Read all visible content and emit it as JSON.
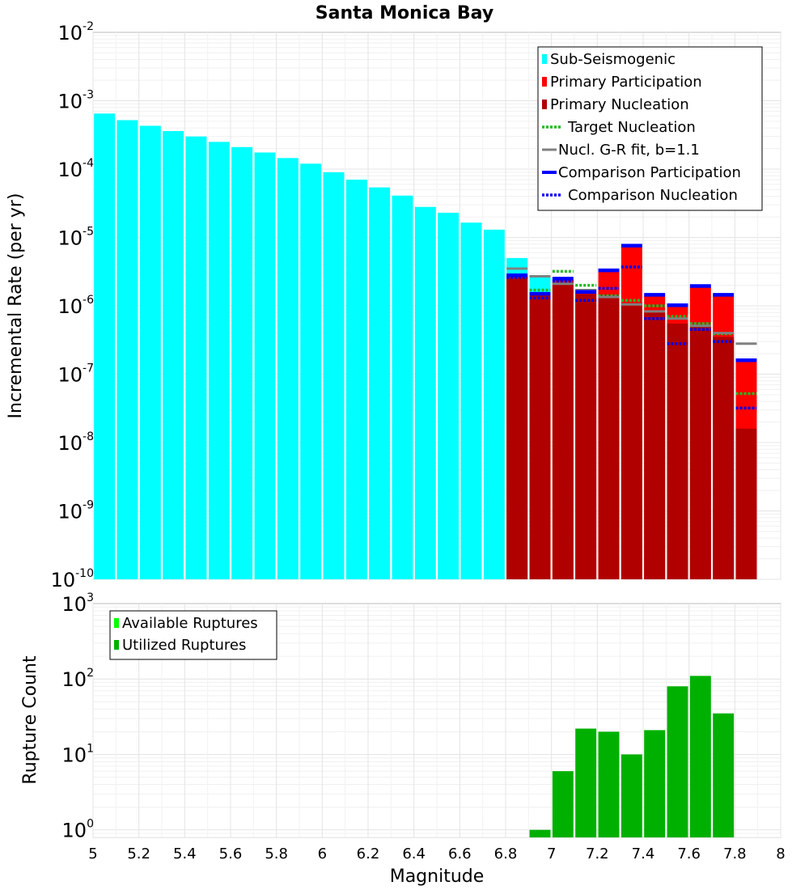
{
  "chart_data": {
    "type": "bar",
    "title": "Santa Monica Bay",
    "xlabel": "Magnitude",
    "x_ticks": [
      "5",
      "5.2",
      "5.4",
      "5.6",
      "5.8",
      "6",
      "6.2",
      "6.4",
      "6.6",
      "6.8",
      "7",
      "7.2",
      "7.4",
      "7.6",
      "7.8",
      "8"
    ],
    "xlim": [
      5,
      8
    ],
    "bin_width": 0.1,
    "panels": [
      {
        "id": "rate",
        "ylabel": "Incremental Rate (per yr)",
        "yscale": "log",
        "ylim_exp": [
          -10,
          -2
        ],
        "y_ticks": [
          {
            "base": "10",
            "exp": "-2"
          },
          {
            "base": "10",
            "exp": "-3"
          },
          {
            "base": "10",
            "exp": "-4"
          },
          {
            "base": "10",
            "exp": "-5"
          },
          {
            "base": "10",
            "exp": "-6"
          },
          {
            "base": "10",
            "exp": "-7"
          },
          {
            "base": "10",
            "exp": "-8"
          },
          {
            "base": "10",
            "exp": "-9"
          },
          {
            "base": "10",
            "exp": "-10"
          }
        ],
        "legend": [
          {
            "label": "Sub-Seismogenic",
            "style": "bar",
            "color": "#00ffff"
          },
          {
            "label": "Primary Participation",
            "style": "bar",
            "color": "#ff0000"
          },
          {
            "label": "Primary Nucleation",
            "style": "bar",
            "color": "#b00000"
          },
          {
            "label": "Target Nucleation",
            "style": "dotted",
            "color": "#22bb22"
          },
          {
            "label": "Nucl. G-R fit, b=1.1",
            "style": "line",
            "color": "#808080"
          },
          {
            "label": "Comparison Participation",
            "style": "line",
            "color": "#0000ff"
          },
          {
            "label": "Comparison Nucleation",
            "style": "dotted",
            "color": "#0000ee"
          }
        ],
        "series": [
          {
            "name": "Sub-Seismogenic",
            "color": "#00ffff",
            "x": [
              5.05,
              5.15,
              5.25,
              5.35,
              5.45,
              5.55,
              5.65,
              5.75,
              5.85,
              5.95,
              6.05,
              6.15,
              6.25,
              6.35,
              6.45,
              6.55,
              6.65,
              6.75,
              6.85,
              6.95
            ],
            "values": [
              0.00065,
              0.00052,
              0.00043,
              0.00036,
              0.0003,
              0.00025,
              0.00021,
              0.000175,
              0.000145,
              0.00012,
              9e-05,
              7e-05,
              5.4e-05,
              4.1e-05,
              2.8e-05,
              2.3e-05,
              1.65e-05,
              1.3e-05,
              5e-06,
              2.7e-06
            ]
          },
          {
            "name": "Primary Participation",
            "color": "#ff0000",
            "x": [
              6.85,
              6.95,
              7.05,
              7.15,
              7.25,
              7.35,
              7.45,
              7.55,
              7.65,
              7.75,
              7.85
            ],
            "values": [
              2.7e-06,
              1.45e-06,
              2.4e-06,
              1.55e-06,
              3.2e-06,
              7.3e-06,
              1.42e-06,
              9.8e-07,
              1.9e-06,
              1.4e-06,
              1.55e-07
            ]
          },
          {
            "name": "Primary Nucleation",
            "color": "#b00000",
            "x": [
              6.85,
              6.95,
              7.05,
              7.15,
              7.25,
              7.35,
              7.45,
              7.55,
              7.65,
              7.75,
              7.85
            ],
            "values": [
              2.6e-06,
              1.45e-06,
              2.2e-06,
              1.5e-06,
              1.45e-06,
              1.1e-06,
              8e-07,
              5.5e-07,
              5e-07,
              3.5e-07,
              1.6e-08
            ]
          },
          {
            "name": "Target Nucleation",
            "color": "#22bb22",
            "style": "dotted",
            "x": [
              6.85,
              6.95,
              7.05,
              7.15,
              7.25,
              7.35,
              7.45,
              7.55,
              7.65,
              7.75,
              7.85
            ],
            "values": [
              2.7e-06,
              1.7e-06,
              3.2e-06,
              2e-06,
              1.4e-06,
              1.2e-06,
              1e-06,
              7e-07,
              5.5e-07,
              3.9e-07,
              5.2e-08
            ]
          },
          {
            "name": "Nucl. G-R fit, b=1.1",
            "color": "#808080",
            "style": "line",
            "x": [
              6.85,
              6.95,
              7.05,
              7.15,
              7.25,
              7.35,
              7.45,
              7.55,
              7.65,
              7.75,
              7.85
            ],
            "values": [
              3.5e-06,
              2.7e-06,
              2.1e-06,
              1.7e-06,
              1.35e-06,
              1.05e-06,
              8.3e-07,
              6.5e-07,
              5.1e-07,
              4e-07,
              2.8e-07
            ]
          },
          {
            "name": "Comparison Participation",
            "color": "#0000ff",
            "style": "line",
            "x": [
              6.85,
              6.95,
              7.05,
              7.15,
              7.25,
              7.35,
              7.45,
              7.55,
              7.65,
              7.75,
              7.85
            ],
            "values": [
              2.8e-06,
              1.5e-06,
              2.5e-06,
              1.6e-06,
              3.3e-06,
              7.6e-06,
              1.45e-06,
              1.02e-06,
              1.95e-06,
              1.45e-06,
              1.6e-07
            ]
          },
          {
            "name": "Comparison Nucleation",
            "color": "#0000ee",
            "style": "dotted",
            "x": [
              6.85,
              6.95,
              7.05,
              7.15,
              7.25,
              7.35,
              7.45,
              7.55,
              7.65,
              7.75,
              7.85
            ],
            "values": [
              2.6e-06,
              1.3e-06,
              2.3e-06,
              1.2e-06,
              1.8e-06,
              3.7e-06,
              6.5e-07,
              2.8e-07,
              4.5e-07,
              3e-07,
              3.2e-08
            ]
          }
        ]
      },
      {
        "id": "count",
        "ylabel": "Rupture Count",
        "yscale": "log",
        "ylim_exp": [
          -0.1,
          3
        ],
        "y_ticks": [
          {
            "base": "10",
            "exp": "3"
          },
          {
            "base": "10",
            "exp": "2"
          },
          {
            "base": "10",
            "exp": "1"
          },
          {
            "base": "10",
            "exp": "0"
          }
        ],
        "legend": [
          {
            "label": "Available Ruptures",
            "style": "bar",
            "color": "#00ff00"
          },
          {
            "label": "Utilized Ruptures",
            "style": "bar",
            "color": "#00b000"
          }
        ],
        "series": [
          {
            "name": "Utilized Ruptures",
            "color": "#00b000",
            "x": [
              6.95,
              7.05,
              7.15,
              7.25,
              7.35,
              7.45,
              7.55,
              7.65,
              7.75
            ],
            "values": [
              1,
              6,
              22,
              20,
              10,
              21,
              80,
              110,
              35
            ]
          }
        ]
      }
    ]
  }
}
